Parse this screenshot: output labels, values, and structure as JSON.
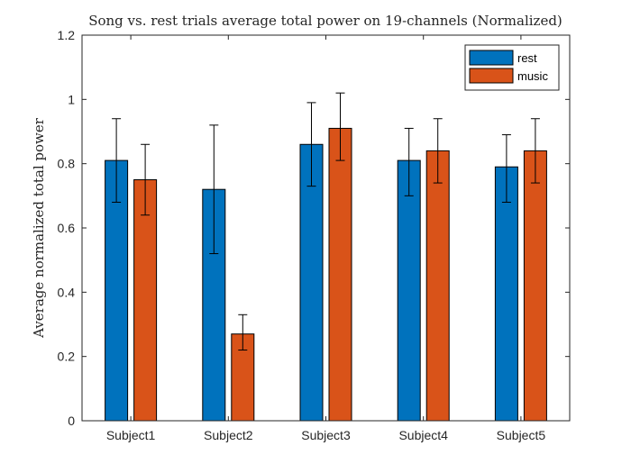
{
  "chart_data": {
    "type": "bar",
    "title": "Song vs. rest trials average total power on 19-channels (Normalized)",
    "xlabel": "",
    "ylabel": "Average normalized total power",
    "categories": [
      "Subject1",
      "Subject2",
      "Subject3",
      "Subject4",
      "Subject5"
    ],
    "ylim": [
      0,
      1.2
    ],
    "yticks": [
      0,
      0.2,
      0.4,
      0.6,
      0.8,
      1,
      1.2
    ],
    "ytick_labels": [
      "0",
      "0.2",
      "0.4",
      "0.6",
      "0.8",
      "1",
      "1.2"
    ],
    "grid": false,
    "legend_position": "top-right",
    "error_bars": true,
    "series": [
      {
        "name": "rest",
        "color": "#0072BD",
        "values": [
          0.81,
          0.72,
          0.86,
          0.81,
          0.79
        ],
        "error_low": [
          0.68,
          0.52,
          0.73,
          0.7,
          0.68
        ],
        "error_high": [
          0.94,
          0.92,
          0.99,
          0.91,
          0.89
        ]
      },
      {
        "name": "music",
        "color": "#D95319",
        "values": [
          0.75,
          0.27,
          0.91,
          0.84,
          0.84
        ],
        "error_low": [
          0.64,
          0.22,
          0.81,
          0.74,
          0.74
        ],
        "error_high": [
          0.86,
          0.33,
          1.02,
          0.94,
          0.94
        ]
      }
    ]
  }
}
